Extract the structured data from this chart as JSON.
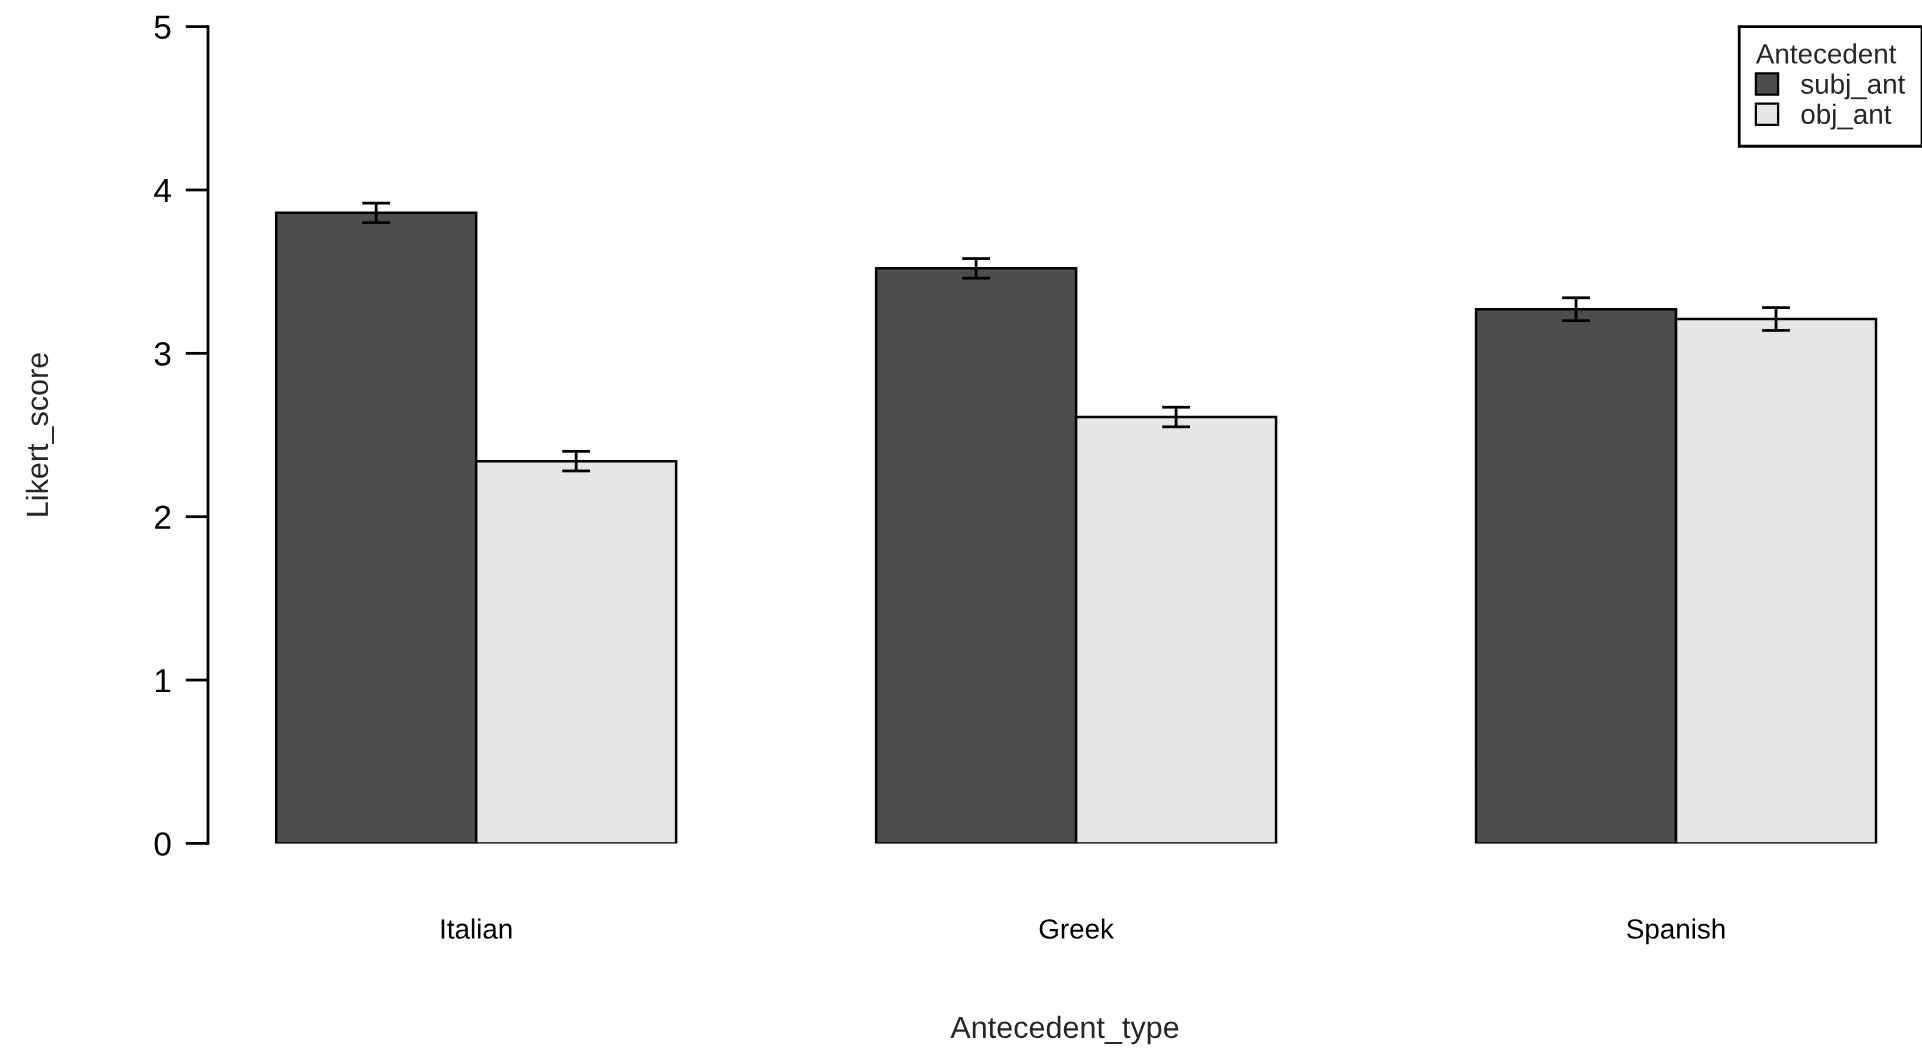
{
  "chart_data": {
    "type": "bar",
    "xlabel": "Antecedent_type",
    "ylabel": "Likert_score",
    "legend_title": "Antecedent",
    "categories": [
      "Italian",
      "Greek",
      "Spanish"
    ],
    "series": [
      {
        "name": "subj_ant",
        "color": "#4d4d4d",
        "values": [
          3.86,
          3.52,
          3.27
        ],
        "errors": [
          0.06,
          0.06,
          0.07
        ]
      },
      {
        "name": "obj_ant",
        "color": "#e6e6e6",
        "values": [
          2.34,
          2.61,
          3.21
        ],
        "errors": [
          0.06,
          0.06,
          0.07
        ]
      }
    ],
    "ylim": [
      0,
      5
    ],
    "yticks": [
      0,
      1,
      2,
      3,
      4,
      5
    ],
    "grid": false,
    "legend": "top right"
  }
}
